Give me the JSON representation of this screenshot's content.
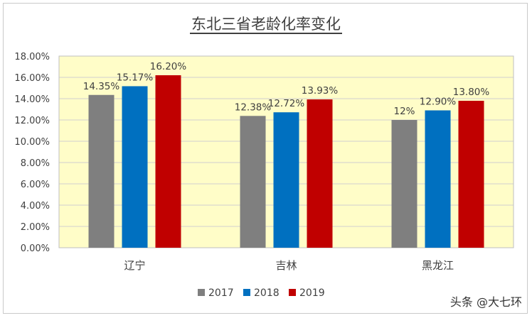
{
  "chart_data": {
    "type": "bar",
    "title": "东北三省老龄化率变化",
    "categories": [
      "辽宁",
      "吉林",
      "黑龙江"
    ],
    "series": [
      {
        "name": "2017",
        "color": "#7f7f7f",
        "values": [
          14.35,
          12.38,
          12.0
        ],
        "labels": [
          "14.35%",
          "12.38%",
          "12%"
        ]
      },
      {
        "name": "2018",
        "color": "#0070c0",
        "values": [
          15.17,
          12.72,
          12.9
        ],
        "labels": [
          "15.17%",
          "12.72%",
          "12.90%"
        ]
      },
      {
        "name": "2019",
        "color": "#c00000",
        "values": [
          16.2,
          13.93,
          13.8
        ],
        "labels": [
          "16.20%",
          "13.93%",
          "13.80%"
        ]
      }
    ],
    "ylim": [
      0,
      18
    ],
    "yticks": [
      "0.00%",
      "2.00%",
      "4.00%",
      "6.00%",
      "8.00%",
      "10.00%",
      "12.00%",
      "14.00%",
      "16.00%",
      "18.00%"
    ],
    "ytick_values": [
      0,
      2,
      4,
      6,
      8,
      10,
      12,
      14,
      16,
      18
    ],
    "grid": true,
    "plot_background": "#fffdc8",
    "legend_position": "bottom"
  },
  "watermark": "头条 @大七环"
}
